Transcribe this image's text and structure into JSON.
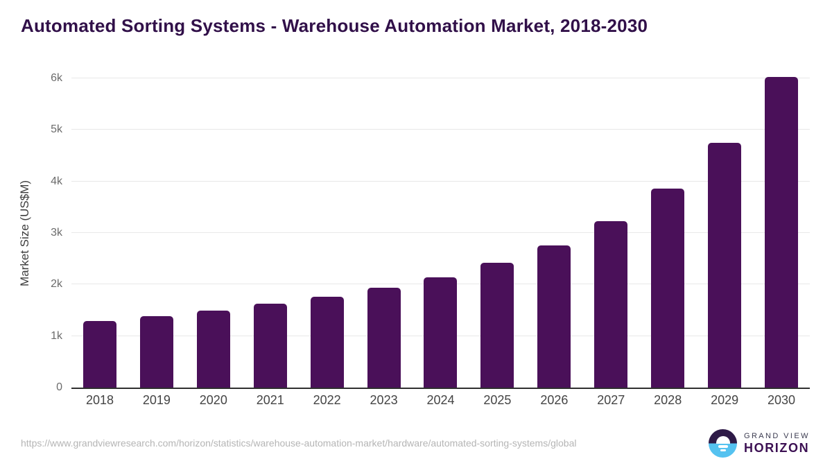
{
  "title": "Automated Sorting Systems - Warehouse Automation Market, 2018-2030",
  "chart_data": {
    "type": "bar",
    "title": "Automated Sorting Systems - Warehouse Automation Market, 2018-2030",
    "categories": [
      "2018",
      "2019",
      "2020",
      "2021",
      "2022",
      "2023",
      "2024",
      "2025",
      "2026",
      "2027",
      "2028",
      "2029",
      "2030"
    ],
    "values": [
      1290,
      1390,
      1490,
      1630,
      1760,
      1940,
      2140,
      2420,
      2760,
      3230,
      3860,
      4750,
      6030
    ],
    "xlabel": "",
    "ylabel": "Market Size (US$M)",
    "ylim": [
      0,
      6000
    ],
    "y_ticks": [
      "0",
      "1k",
      "2k",
      "3k",
      "4k",
      "5k",
      "6k"
    ],
    "y_tick_values": [
      0,
      1000,
      2000,
      3000,
      4000,
      5000,
      6000
    ],
    "grid": true,
    "legend": "none",
    "bar_color": "#4a1059"
  },
  "footer": {
    "source_url": "https://www.grandviewresearch.com/horizon/statistics/warehouse-automation-market/hardware/automated-sorting-systems/global",
    "logo": {
      "line1": "GRAND VIEW",
      "line2": "HORIZON"
    }
  },
  "colors": {
    "bar": "#4a1059",
    "title": "#311049",
    "gridline": "#e8e8e8",
    "axis_line": "#2f2f2f",
    "tick_label": "#6b6b6b",
    "x_label": "#444444",
    "url_text": "#b5b5b5",
    "logo_dark": "#2e1a47",
    "logo_blue": "#55c2f0"
  }
}
